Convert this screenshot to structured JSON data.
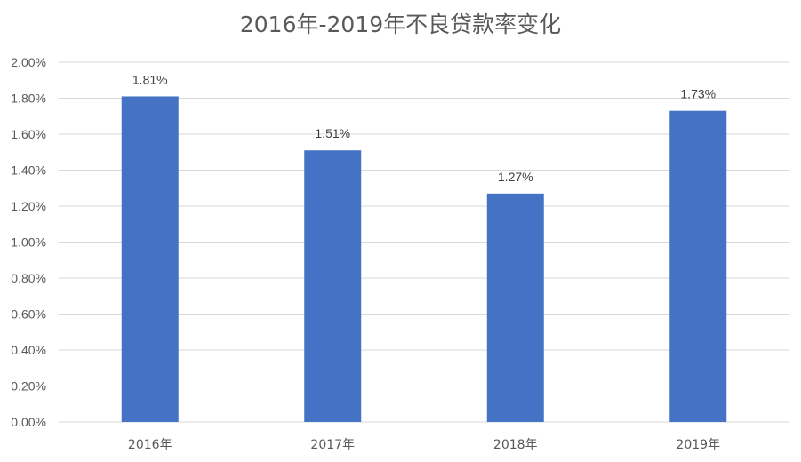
{
  "chart_data": {
    "type": "bar",
    "title": "2016年-2019年不良贷款率变化",
    "categories": [
      "2016年",
      "2017年",
      "2018年",
      "2019年"
    ],
    "values": [
      1.81,
      1.51,
      1.27,
      1.73
    ],
    "value_labels": [
      "1.81%",
      "1.51%",
      "1.27%",
      "1.73%"
    ],
    "ylim": [
      0,
      2.0
    ],
    "yticks": [
      0,
      0.2,
      0.4,
      0.6,
      0.8,
      1.0,
      1.2,
      1.4,
      1.6,
      1.8,
      2.0
    ],
    "ytick_labels": [
      "0.00%",
      "0.20%",
      "0.40%",
      "0.60%",
      "0.80%",
      "1.00%",
      "1.20%",
      "1.40%",
      "1.60%",
      "1.80%",
      "2.00%"
    ],
    "grid": true,
    "legend": "none",
    "bar_color": "#4472C4"
  }
}
